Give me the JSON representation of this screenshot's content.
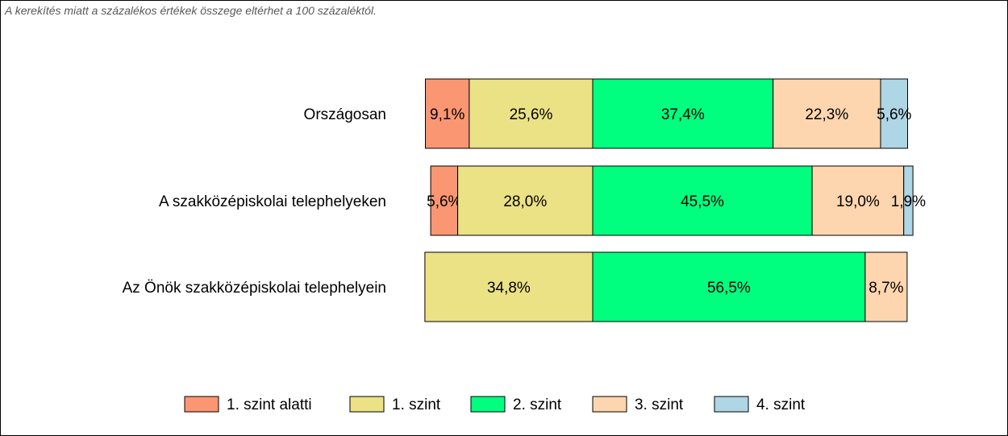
{
  "note": "A kerekítés miatt a  százalékos értékek összege eltérhet a 100 százaléktól.",
  "chart_data": {
    "type": "bar",
    "orientation": "horizontal",
    "stacked": true,
    "categories": [
      "Országosan",
      "A szakközépiskolai telephelyeken",
      "Az Önök szakközépiskolai telephelyein"
    ],
    "series": [
      {
        "name": "1. szint alatti",
        "color": "#FA9671",
        "values": [
          9.1,
          5.6,
          0
        ],
        "labels": [
          "9,1%",
          "5,6%",
          ""
        ]
      },
      {
        "name": "1. szint",
        "color": "#EBE185",
        "values": [
          25.6,
          28.0,
          34.8
        ],
        "labels": [
          "25,6%",
          "28,0%",
          "34,8%"
        ]
      },
      {
        "name": "2. szint",
        "color": "#00FF7F",
        "values": [
          37.4,
          45.5,
          56.5
        ],
        "labels": [
          "37,4%",
          "45,5%",
          "56,5%"
        ]
      },
      {
        "name": "3. szint",
        "color": "#FDD6AF",
        "values": [
          22.3,
          19.0,
          8.7
        ],
        "labels": [
          "22,3%",
          "19,0%",
          "8,7%"
        ]
      },
      {
        "name": "4. szint",
        "color": "#AED6E5",
        "values": [
          5.6,
          1.9,
          0
        ],
        "labels": [
          "5,6%",
          "1,9%",
          ""
        ]
      }
    ],
    "alignment": "bars aligned at the boundary between 1. szint and 2. szint",
    "legend_position": "bottom",
    "grid": false
  }
}
